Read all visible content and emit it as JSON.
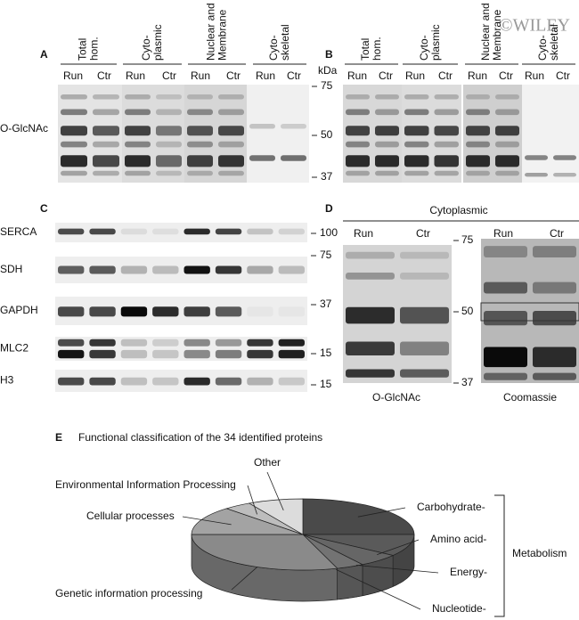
{
  "watermark": "©WILEY",
  "panel_a": {
    "letter": "A",
    "groups": [
      [
        "Total",
        "hom."
      ],
      [
        "Cyto-",
        "plasmic"
      ],
      [
        "Nuclear and",
        "Membrane"
      ],
      [
        "Cyto-",
        "skeletal"
      ]
    ],
    "lanes": [
      "Run",
      "Ctr",
      "Run",
      "Ctr",
      "Run",
      "Ctr",
      "Run",
      "Ctr"
    ],
    "row_label": "O-GlcNAc",
    "unit": "kDa",
    "markers": [
      "75",
      "50",
      "37"
    ]
  },
  "panel_b": {
    "letter": "B",
    "groups": [
      [
        "Total",
        "hom."
      ],
      [
        "Cyto-",
        "plasmic"
      ],
      [
        "Nuclear and",
        "Membrane"
      ],
      [
        "Cyto-",
        "skeletal"
      ]
    ],
    "lanes": [
      "Run",
      "Ctr",
      "Run",
      "Ctr",
      "Run",
      "Ctr",
      "Run",
      "Ctr"
    ]
  },
  "panel_c": {
    "letter": "C",
    "rows": [
      "SERCA",
      "SDH",
      "GAPDH",
      "MLC2",
      "H3"
    ],
    "markers": [
      "100",
      "75",
      "37",
      "15",
      "15"
    ]
  },
  "panel_d": {
    "letter": "D",
    "header": "Cytoplasmic",
    "lanes": [
      "Run",
      "Ctr",
      "Run",
      "Ctr"
    ],
    "markers": [
      "75",
      "50",
      "37"
    ],
    "captions": [
      "O-GlcNAc",
      "Coomassie"
    ]
  },
  "panel_e": {
    "letter": "E",
    "title": "Functional classification of the 34 identified proteins",
    "group_label": "Metabolism",
    "slices": [
      {
        "label": "Carbohydrate-",
        "value": 25,
        "color": "#4a4a4a"
      },
      {
        "label": "Amino acid-",
        "value": 10,
        "color": "#5a5a5a"
      },
      {
        "label": "Energy-",
        "value": 6,
        "color": "#666666"
      },
      {
        "label": "Nucleotide-",
        "value": 4,
        "color": "#737373"
      },
      {
        "label": "Genetic information processing",
        "value": 30,
        "color": "#8a8a8a"
      },
      {
        "label": "Cellular processes",
        "value": 13,
        "color": "#a3a3a3"
      },
      {
        "label": "Environmental Information Processing",
        "value": 4,
        "color": "#bdbdbd"
      },
      {
        "label": "Other",
        "value": 8,
        "color": "#dcdcdc"
      }
    ]
  }
}
